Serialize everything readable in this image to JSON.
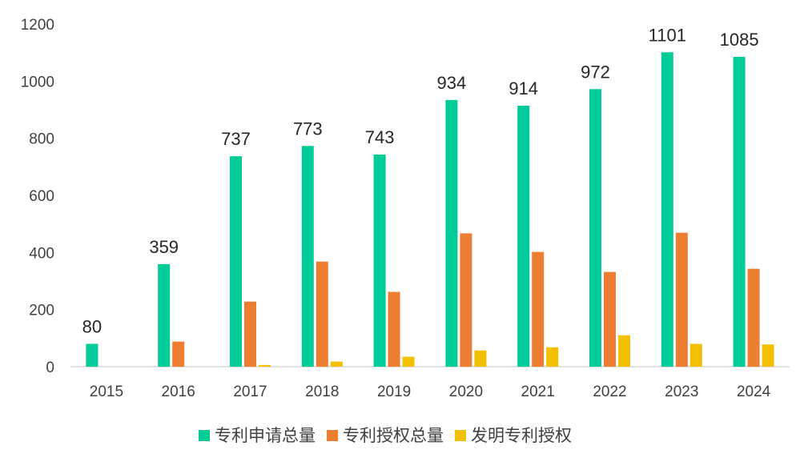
{
  "chart_data": {
    "type": "bar",
    "title": "",
    "xlabel": "",
    "ylabel": "",
    "ylim": [
      0,
      1200
    ],
    "y_ticks": [
      "0",
      "200",
      "400",
      "600",
      "800",
      "1000",
      "1200"
    ],
    "grid": false,
    "categories": [
      "2015",
      "2016",
      "2017",
      "2018",
      "2019",
      "2020",
      "2021",
      "2022",
      "2023",
      "2024"
    ],
    "series": [
      {
        "name": "专利申请总量",
        "color": "#00CC99",
        "values": [
          80,
          359,
          737,
          773,
          743,
          934,
          914,
          972,
          1101,
          1085
        ],
        "data_labels": [
          "80",
          "359",
          "737",
          "773",
          "743",
          "934",
          "914",
          "972",
          "1101",
          "1085"
        ]
      },
      {
        "name": "专利授权总量",
        "color": "#ED7D31",
        "values": [
          0,
          88,
          228,
          368,
          262,
          467,
          402,
          332,
          469,
          343
        ]
      },
      {
        "name": "发明专利授权",
        "color": "#F2C000",
        "values": [
          0,
          0,
          6,
          18,
          35,
          57,
          68,
          110,
          80,
          78
        ]
      }
    ],
    "legend": {
      "position": "bottom"
    }
  }
}
